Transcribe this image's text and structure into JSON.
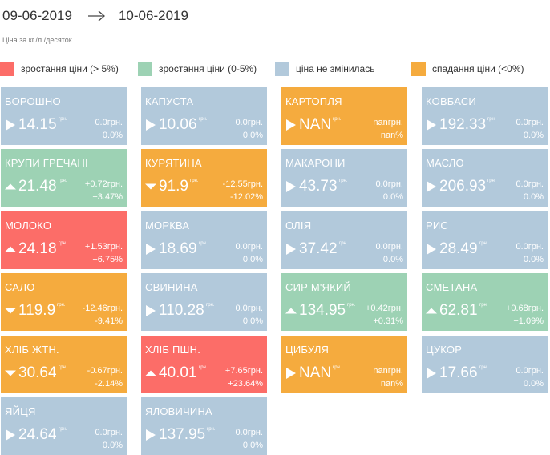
{
  "period": {
    "from": "09-06-2019",
    "to": "10-06-2019"
  },
  "unit_note": "Ціна за кг./л./десяток",
  "colors": {
    "red": "#fc6d68",
    "green": "#9dd2b4",
    "blue": "#b2c9db",
    "orange": "#f5ab3e"
  },
  "legend": [
    {
      "label": "зростання ціни (> 5%)",
      "color": "red"
    },
    {
      "label": "зростання ціни (0-5%)",
      "color": "green"
    },
    {
      "label": "ціна не змінилась",
      "color": "blue"
    },
    {
      "label": "спадання ціни (<0%)",
      "color": "orange"
    }
  ],
  "currency": "грн.",
  "tiles": [
    {
      "name": "БОРОШНО",
      "price": "14.15",
      "abs": "0.0грн.",
      "pct": "0.0%",
      "color": "blue",
      "indicator": "right-triangle-icon"
    },
    {
      "name": "КАПУСТА",
      "price": "10.06",
      "abs": "0.0грн.",
      "pct": "0.0%",
      "color": "blue",
      "indicator": "right-triangle-icon"
    },
    {
      "name": "КАРТОПЛЯ",
      "price": "NAN",
      "abs": "nanгрн.",
      "pct": "nan%",
      "color": "orange",
      "indicator": "right-triangle-icon"
    },
    {
      "name": "КОВБАСИ",
      "price": "192.33",
      "abs": "0.0грн.",
      "pct": "0.0%",
      "color": "blue",
      "indicator": "right-triangle-icon"
    },
    {
      "name": "КРУПИ ГРЕЧАНІ",
      "price": "21.48",
      "abs": "+0.72грн.",
      "pct": "+3.47%",
      "color": "green",
      "indicator": "up-triangle-icon"
    },
    {
      "name": "КУРЯТИНА",
      "price": "91.9",
      "abs": "-12.55грн.",
      "pct": "-12.02%",
      "color": "orange",
      "indicator": "down-triangle-icon"
    },
    {
      "name": "МАКАРОНИ",
      "price": "43.73",
      "abs": "0.0грн.",
      "pct": "0.0%",
      "color": "blue",
      "indicator": "right-triangle-icon"
    },
    {
      "name": "МАСЛО",
      "price": "206.93",
      "abs": "0.0грн.",
      "pct": "0.0%",
      "color": "blue",
      "indicator": "right-triangle-icon"
    },
    {
      "name": "МОЛОКО",
      "price": "24.18",
      "abs": "+1.53грн.",
      "pct": "+6.75%",
      "color": "red",
      "indicator": "up-triangle-icon"
    },
    {
      "name": "МОРКВА",
      "price": "18.69",
      "abs": "0.0грн.",
      "pct": "0.0%",
      "color": "blue",
      "indicator": "right-triangle-icon"
    },
    {
      "name": "ОЛІЯ",
      "price": "37.42",
      "abs": "0.0грн.",
      "pct": "0.0%",
      "color": "blue",
      "indicator": "right-triangle-icon"
    },
    {
      "name": "РИС",
      "price": "28.49",
      "abs": "0.0грн.",
      "pct": "0.0%",
      "color": "blue",
      "indicator": "right-triangle-icon"
    },
    {
      "name": "САЛО",
      "price": "119.9",
      "abs": "-12.46грн.",
      "pct": "-9.41%",
      "color": "orange",
      "indicator": "down-triangle-icon"
    },
    {
      "name": "СВИНИНА",
      "price": "110.28",
      "abs": "0.0грн.",
      "pct": "0.0%",
      "color": "blue",
      "indicator": "right-triangle-icon"
    },
    {
      "name": "СИР М'ЯКИЙ",
      "price": "134.95",
      "abs": "+0.42грн.",
      "pct": "+0.31%",
      "color": "green",
      "indicator": "up-triangle-icon"
    },
    {
      "name": "СМЕТАНА",
      "price": "62.81",
      "abs": "+0.68грн.",
      "pct": "+1.09%",
      "color": "green",
      "indicator": "up-triangle-icon"
    },
    {
      "name": "ХЛІБ ЖТН.",
      "price": "30.64",
      "abs": "-0.67грн.",
      "pct": "-2.14%",
      "color": "orange",
      "indicator": "down-triangle-icon"
    },
    {
      "name": "ХЛІБ ПШН.",
      "price": "40.01",
      "abs": "+7.65грн.",
      "pct": "+23.64%",
      "color": "red",
      "indicator": "up-triangle-icon"
    },
    {
      "name": "ЦИБУЛЯ",
      "price": "NAN",
      "abs": "nanгрн.",
      "pct": "nan%",
      "color": "orange",
      "indicator": "right-triangle-icon"
    },
    {
      "name": "ЦУКОР",
      "price": "17.66",
      "abs": "0.0грн.",
      "pct": "0.0%",
      "color": "blue",
      "indicator": "right-triangle-icon"
    },
    {
      "name": "ЯЙЦЯ",
      "price": "24.64",
      "abs": "0.0грн.",
      "pct": "0.0%",
      "color": "blue",
      "indicator": "right-triangle-icon"
    },
    {
      "name": "ЯЛОВИЧИНА",
      "price": "137.95",
      "abs": "0.0грн.",
      "pct": "0.0%",
      "color": "blue",
      "indicator": "right-triangle-icon"
    }
  ]
}
